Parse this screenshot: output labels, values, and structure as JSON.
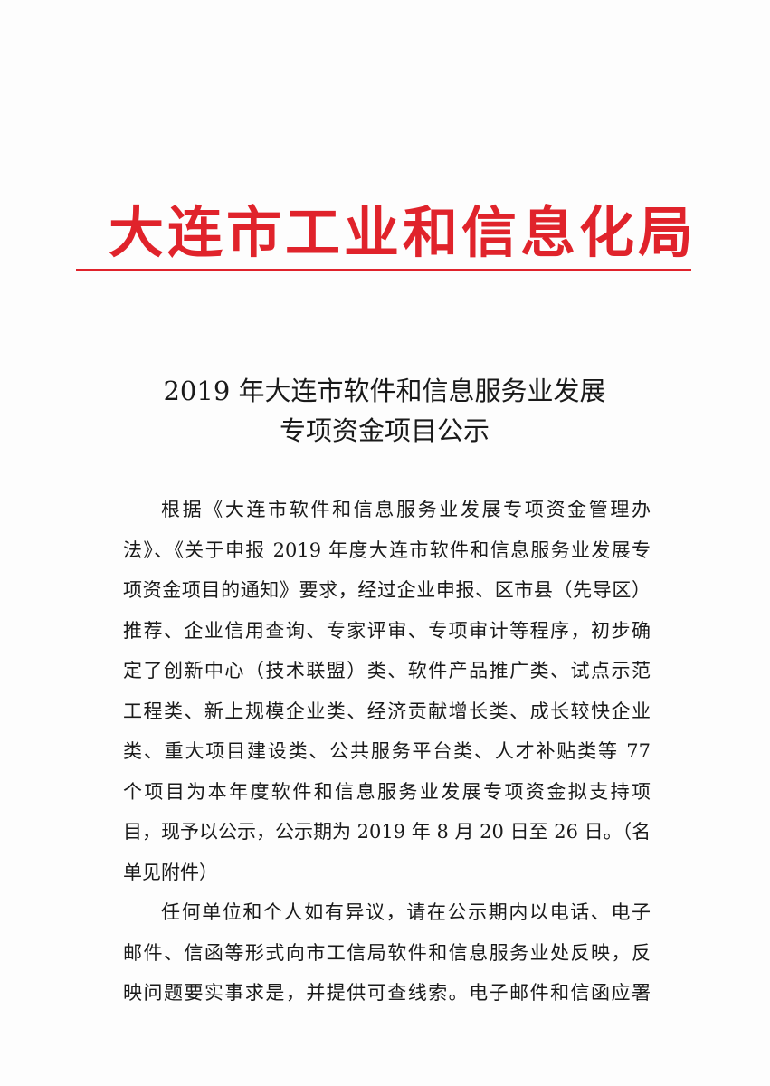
{
  "letterhead": {
    "org_name": "大连市工业和信息化局",
    "color": "#e0232b"
  },
  "title": {
    "line1": "2019 年大连市软件和信息服务业发展",
    "line2": "专项资金项目公示"
  },
  "body": {
    "paragraph1": [
      "根据《大连市软件和信息服务业发展专项资金管理办",
      "法》、《关于申报 2019 年度大连市软件和信息服务业发展专",
      "项资金项目的通知》要求，经过企业申报、区市县（先导区）",
      "推荐、企业信用查询、专家评审、专项审计等程序，初步确",
      "定了创新中心（技术联盟）类、软件产品推广类、试点示范",
      "工程类、新上规模企业类、经济贡献增长类、成长较快企业",
      "类、重大项目建设类、公共服务平台类、人才补贴类等 77",
      "个项目为本年度软件和信息服务业发展专项资金拟支持项",
      "目，现予以公示，公示期为 2019 年 8 月 20 日至 26 日。（名",
      "单见附件）"
    ],
    "paragraph2": [
      "任何单位和个人如有异议，请在公示期内以电话、电子",
      "邮件、信函等形式向市工信局软件和信息服务业处反映，反",
      "映问题要实事求是，并提供可查线索。电子邮件和信函应署"
    ]
  }
}
